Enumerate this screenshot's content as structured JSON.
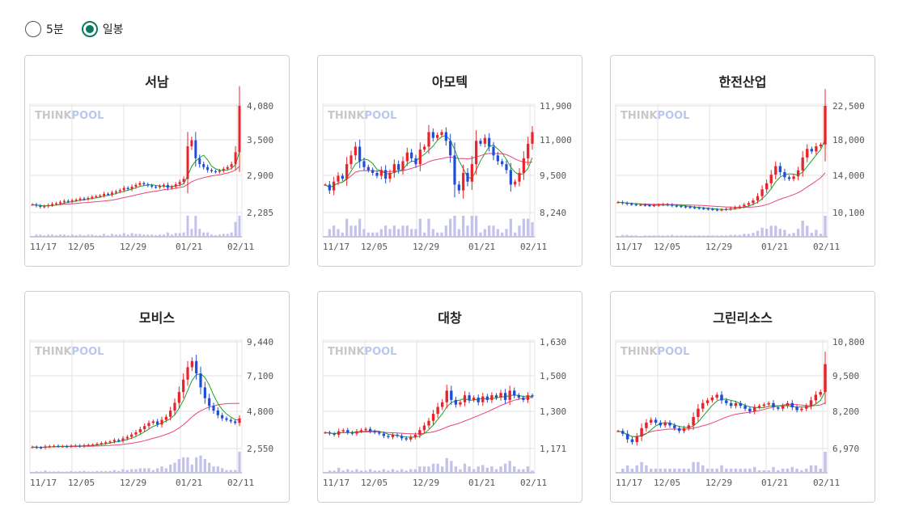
{
  "radios": [
    {
      "label": "5분",
      "checked": false
    },
    {
      "label": "일봉",
      "checked": true
    }
  ],
  "watermark": {
    "think": "THINK",
    "pool": "POOL"
  },
  "colors": {
    "up": "#e8232b",
    "down": "#1e4ed8",
    "ma_short": "#1fa12a",
    "ma_long": "#e8457a",
    "volume": "#c2c2ea",
    "grid": "#e2e2e2",
    "accent": "#0a7a64"
  },
  "charts": [
    {
      "title": "서남",
      "x_labels": [
        "11/17",
        "12/05",
        "12/29",
        "01/21",
        "02/11"
      ],
      "y_labels": [
        "4,080",
        "3,500",
        "2,900",
        "2,285"
      ],
      "chart_data": {
        "type": "candlestick",
        "y_range": [
          2285,
          4080
        ],
        "close_series": [
          2420,
          2400,
          2380,
          2390,
          2410,
          2430,
          2440,
          2460,
          2480,
          2470,
          2490,
          2500,
          2520,
          2510,
          2530,
          2550,
          2560,
          2570,
          2600,
          2590,
          2620,
          2640,
          2660,
          2700,
          2680,
          2720,
          2750,
          2780,
          2760,
          2740,
          2720,
          2710,
          2730,
          2750,
          2700,
          2720,
          2760,
          2800,
          2850,
          3400,
          3500,
          3200,
          3100,
          3050,
          3000,
          2980,
          2970,
          2990,
          3020,
          3050,
          3100,
          3300,
          4080
        ],
        "last_volume_spike": true
      }
    },
    {
      "title": "아모텍",
      "x_labels": [
        "11/17",
        "12/05",
        "12/29",
        "01/21",
        "02/11"
      ],
      "y_labels": [
        "11,900",
        "11,000",
        "9,500",
        "8,240"
      ],
      "chart_data": {
        "type": "candlestick",
        "y_range": [
          8240,
          11900
        ],
        "close_series": [
          9200,
          9000,
          9300,
          9500,
          9400,
          9900,
          10200,
          10500,
          10000,
          9800,
          9700,
          9600,
          9500,
          9700,
          9400,
          9600,
          9900,
          9700,
          10000,
          10300,
          10100,
          9900,
          10400,
          10500,
          11000,
          10800,
          10900,
          11000,
          10700,
          10200,
          9200,
          9000,
          9600,
          9300,
          9900,
          10700,
          10600,
          10800,
          10500,
          10200,
          10000,
          9900,
          9700,
          9200,
          9300,
          9600,
          10100,
          10600,
          11000
        ],
        "last_volume_spike": false
      }
    },
    {
      "title": "한전산업",
      "x_labels": [
        "11/17",
        "12/05",
        "12/29",
        "01/21",
        "02/11"
      ],
      "y_labels": [
        "22,500",
        "18,000",
        "14,000",
        "10,100"
      ],
      "chart_data": {
        "type": "candlestick",
        "y_range": [
          10100,
          22500
        ],
        "close_series": [
          11300,
          11200,
          11100,
          11050,
          11000,
          11000,
          10950,
          10900,
          10950,
          11000,
          11050,
          11000,
          10900,
          10850,
          10800,
          10750,
          10700,
          10650,
          10600,
          10550,
          10500,
          10450,
          10400,
          10450,
          10500,
          10600,
          10700,
          10800,
          11000,
          11200,
          11500,
          12000,
          12800,
          13500,
          14500,
          15500,
          14800,
          14200,
          14000,
          14300,
          15000,
          16500,
          17500,
          17200,
          17800,
          18000,
          22500
        ],
        "last_volume_spike": true
      }
    },
    {
      "title": "모비스",
      "x_labels": [
        "11/17",
        "12/05",
        "12/29",
        "01/21",
        "02/11"
      ],
      "y_labels": [
        "9,440",
        "7,100",
        "4,800",
        "2,550"
      ],
      "chart_data": {
        "type": "candlestick",
        "y_range": [
          2550,
          9440
        ],
        "close_series": [
          2650,
          2620,
          2600,
          2680,
          2700,
          2720,
          2690,
          2700,
          2680,
          2720,
          2740,
          2700,
          2760,
          2780,
          2800,
          2850,
          2900,
          2950,
          3000,
          3100,
          3050,
          3200,
          3300,
          3450,
          3600,
          3800,
          4000,
          4200,
          4300,
          4100,
          4400,
          4600,
          5000,
          5500,
          6200,
          7000,
          7800,
          8200,
          7400,
          6500,
          5800,
          5300,
          5000,
          4700,
          4500,
          4400,
          4300,
          4200,
          4500
        ],
        "last_volume_spike": true
      }
    },
    {
      "title": "대창",
      "x_labels": [
        "11/17",
        "12/05",
        "12/29",
        "01/21",
        "02/11"
      ],
      "y_labels": [
        "1,630",
        "1,500",
        "1,300",
        "1,171"
      ],
      "chart_data": {
        "type": "candlestick",
        "y_range": [
          1171,
          1630
        ],
        "close_series": [
          1240,
          1235,
          1230,
          1245,
          1250,
          1240,
          1235,
          1245,
          1250,
          1255,
          1245,
          1240,
          1235,
          1225,
          1220,
          1230,
          1225,
          1215,
          1210,
          1220,
          1230,
          1250,
          1270,
          1290,
          1320,
          1350,
          1370,
          1420,
          1380,
          1360,
          1370,
          1400,
          1380,
          1390,
          1370,
          1395,
          1380,
          1400,
          1390,
          1410,
          1380,
          1420,
          1400,
          1390,
          1380,
          1400,
          1395
        ],
        "last_volume_spike": false
      }
    },
    {
      "title": "그린리소스",
      "x_labels": [
        "11/17",
        "12/05",
        "12/29",
        "01/21",
        "02/11"
      ],
      "y_labels": [
        "10,800",
        "9,500",
        "8,200",
        "6,970"
      ],
      "chart_data": {
        "type": "candlestick",
        "y_range": [
          6970,
          10800
        ],
        "close_series": [
          7600,
          7500,
          7300,
          7200,
          7400,
          7700,
          7900,
          8000,
          7900,
          7800,
          7900,
          7800,
          7700,
          7600,
          7700,
          7800,
          8100,
          8400,
          8600,
          8700,
          8800,
          8900,
          8700,
          8600,
          8500,
          8600,
          8500,
          8400,
          8300,
          8450,
          8500,
          8550,
          8600,
          8450,
          8400,
          8500,
          8600,
          8450,
          8350,
          8400,
          8500,
          8700,
          8900,
          9000,
          10000
        ],
        "last_volume_spike": true
      }
    }
  ]
}
